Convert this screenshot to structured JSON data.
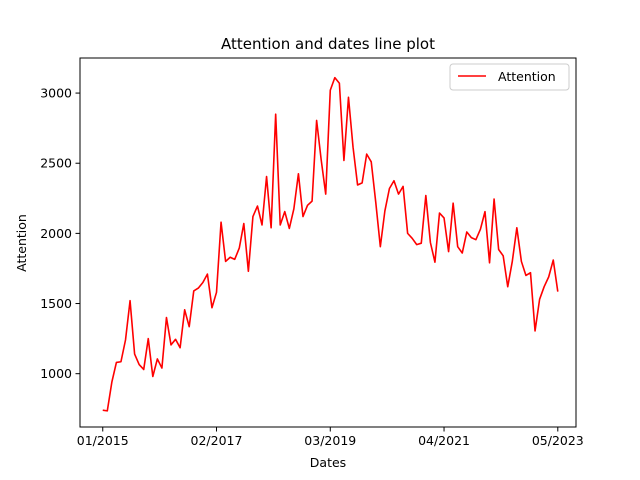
{
  "chart_data": {
    "type": "line",
    "title": "Attention and dates line plot",
    "xlabel": "Dates",
    "ylabel": "Attention",
    "x_ticks": [
      {
        "label": "01/2015",
        "date": "2015-01"
      },
      {
        "label": "02/2017",
        "date": "2017-02"
      },
      {
        "label": "03/2019",
        "date": "2019-03"
      },
      {
        "label": "04/2021",
        "date": "2021-04"
      },
      {
        "label": "05/2023",
        "date": "2023-05"
      }
    ],
    "y_ticks": [
      1000,
      1500,
      2000,
      2500,
      3000
    ],
    "xlim": [
      "2014-08",
      "2023-09"
    ],
    "ylim": [
      620,
      3250
    ],
    "grid": false,
    "legend": {
      "position": "top-right",
      "entries": [
        "Attention"
      ]
    },
    "color": "#ff0000",
    "series": [
      {
        "name": "Attention",
        "x": [
          "2015-01",
          "2015-02",
          "2015-03",
          "2015-04",
          "2015-05",
          "2015-06",
          "2015-07",
          "2015-08",
          "2015-09",
          "2015-10",
          "2015-11",
          "2015-12",
          "2016-01",
          "2016-02",
          "2016-03",
          "2016-04",
          "2016-05",
          "2016-06",
          "2016-07",
          "2016-08",
          "2016-09",
          "2016-10",
          "2016-11",
          "2016-12",
          "2017-01",
          "2017-02",
          "2017-03",
          "2017-04",
          "2017-05",
          "2017-06",
          "2017-07",
          "2017-08",
          "2017-09",
          "2017-10",
          "2017-11",
          "2017-12",
          "2018-01",
          "2018-02",
          "2018-03",
          "2018-04",
          "2018-05",
          "2018-06",
          "2018-07",
          "2018-08",
          "2018-09",
          "2018-10",
          "2018-11",
          "2018-12",
          "2019-01",
          "2019-02",
          "2019-03",
          "2019-04",
          "2019-05",
          "2019-06",
          "2019-07",
          "2019-08",
          "2019-09",
          "2019-10",
          "2019-11",
          "2019-12",
          "2020-01",
          "2020-02",
          "2020-03",
          "2020-04",
          "2020-05",
          "2020-06",
          "2020-07",
          "2020-08",
          "2020-09",
          "2020-10",
          "2020-11",
          "2020-12",
          "2021-01",
          "2021-02",
          "2021-03",
          "2021-04",
          "2021-05",
          "2021-06",
          "2021-07",
          "2021-08",
          "2021-09",
          "2021-10",
          "2021-11",
          "2021-12",
          "2022-01",
          "2022-02",
          "2022-03",
          "2022-04",
          "2022-05",
          "2022-06",
          "2022-07",
          "2022-08",
          "2022-09",
          "2022-10",
          "2022-11",
          "2022-12",
          "2023-01",
          "2023-02",
          "2023-03",
          "2023-04",
          "2023-05"
        ],
        "values": [
          740,
          735,
          940,
          1080,
          1085,
          1240,
          1520,
          1140,
          1065,
          1030,
          1250,
          980,
          1105,
          1040,
          1400,
          1205,
          1245,
          1185,
          1455,
          1335,
          1590,
          1610,
          1650,
          1710,
          1470,
          1580,
          2080,
          1800,
          1830,
          1815,
          1895,
          2070,
          1730,
          2120,
          2195,
          2060,
          2405,
          2040,
          2850,
          2060,
          2155,
          2035,
          2175,
          2425,
          2120,
          2200,
          2230,
          2805,
          2525,
          2280,
          3020,
          3110,
          3070,
          2520,
          2970,
          2615,
          2345,
          2360,
          2565,
          2510,
          2220,
          1905,
          2160,
          2320,
          2375,
          2280,
          2335,
          2000,
          1965,
          1920,
          1930,
          2270,
          1935,
          1795,
          2145,
          2110,
          1870,
          2215,
          1905,
          1860,
          2010,
          1970,
          1955,
          2030,
          2155,
          1790,
          2245,
          1885,
          1840,
          1620,
          1800,
          2040,
          1800,
          1700,
          1720,
          1305,
          1530,
          1620,
          1690,
          1810,
          1585
        ]
      }
    ]
  }
}
